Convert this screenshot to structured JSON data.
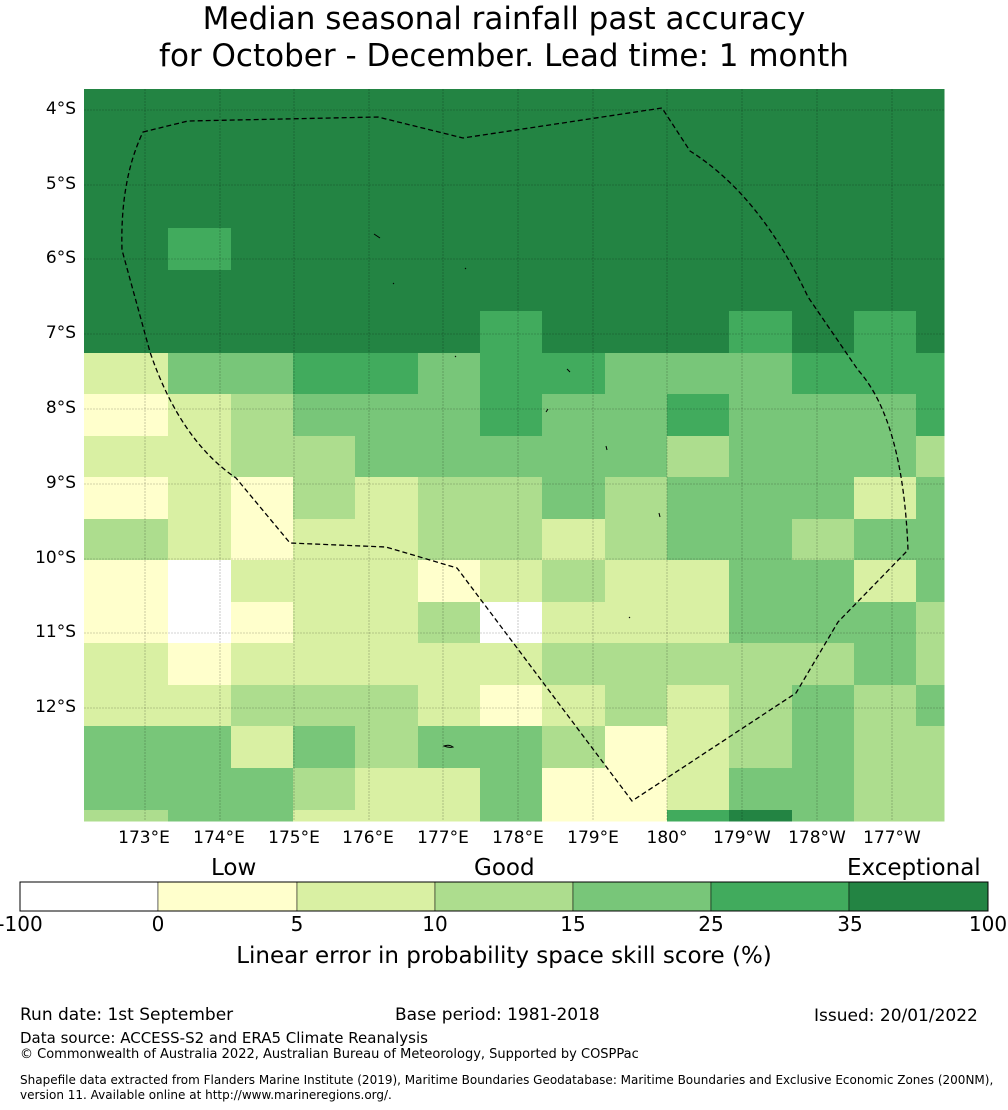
{
  "title_line1": "Median seasonal rainfall past accuracy",
  "title_line2": "for October - December. Lead time: 1 month",
  "map": {
    "lat_labels": [
      "4°S",
      "5°S",
      "6°S",
      "7°S",
      "8°S",
      "9°S",
      "10°S",
      "11°S",
      "12°S"
    ],
    "lon_labels": [
      "173°E",
      "174°E",
      "175°E",
      "176°E",
      "177°E",
      "178°E",
      "179°E",
      "180°",
      "179°W",
      "178°W",
      "177°W"
    ],
    "boundary": "EEZ boundary (dashed)"
  },
  "skill_grid": {
    "columns": 14,
    "rows": 18,
    "row_values": [
      [
        6,
        6,
        6,
        6,
        6,
        6,
        6,
        6,
        6,
        6,
        6,
        6,
        6,
        6
      ],
      [
        6,
        6,
        6,
        6,
        6,
        6,
        6,
        6,
        6,
        6,
        6,
        6,
        6,
        6
      ],
      [
        6,
        6,
        6,
        6,
        6,
        6,
        6,
        6,
        6,
        6,
        6,
        6,
        6,
        6
      ],
      [
        6,
        5,
        6,
        6,
        6,
        6,
        6,
        6,
        6,
        6,
        6,
        6,
        6,
        6
      ],
      [
        6,
        6,
        6,
        6,
        6,
        6,
        6,
        6,
        6,
        6,
        6,
        6,
        6,
        6
      ],
      [
        6,
        6,
        6,
        6,
        6,
        6,
        5,
        6,
        6,
        6,
        5,
        6,
        5,
        6
      ],
      [
        2,
        4,
        4,
        5,
        5,
        4,
        5,
        5,
        4,
        4,
        4,
        5,
        5,
        5
      ],
      [
        1,
        2,
        3,
        4,
        4,
        4,
        5,
        4,
        4,
        5,
        4,
        4,
        4,
        5
      ],
      [
        2,
        2,
        3,
        3,
        4,
        4,
        4,
        4,
        4,
        3,
        4,
        4,
        4,
        3
      ],
      [
        1,
        2,
        1,
        3,
        2,
        3,
        3,
        4,
        3,
        4,
        4,
        4,
        2,
        4
      ],
      [
        3,
        2,
        1,
        2,
        2,
        3,
        3,
        2,
        3,
        4,
        4,
        3,
        4,
        4
      ],
      [
        1,
        0,
        2,
        2,
        2,
        1,
        2,
        3,
        2,
        2,
        4,
        4,
        2,
        4
      ],
      [
        1,
        0,
        1,
        2,
        2,
        3,
        0,
        2,
        2,
        2,
        4,
        4,
        4,
        3
      ],
      [
        2,
        1,
        2,
        2,
        2,
        2,
        2,
        3,
        3,
        3,
        3,
        3,
        4,
        3
      ],
      [
        2,
        2,
        3,
        3,
        3,
        2,
        1,
        2,
        3,
        2,
        3,
        4,
        3,
        4
      ],
      [
        4,
        4,
        2,
        4,
        3,
        4,
        4,
        3,
        1,
        2,
        3,
        4,
        3,
        3
      ],
      [
        4,
        4,
        4,
        3,
        2,
        2,
        4,
        1,
        1,
        2,
        4,
        4,
        3,
        3
      ],
      [
        3,
        4,
        4,
        2,
        2,
        2,
        4,
        1,
        1,
        5,
        6,
        4,
        3,
        3
      ]
    ]
  },
  "legend": {
    "categories": [
      "Low",
      "Good",
      "Exceptional"
    ],
    "ticks": [
      "-100",
      "0",
      "5",
      "10",
      "15",
      "25",
      "35",
      "100"
    ],
    "colors": [
      "#ffffff",
      "#ffffcc",
      "#d9f0a3",
      "#addd8e",
      "#78c679",
      "#41ab5d",
      "#238443"
    ],
    "title": "Linear error in probability space skill score (%)"
  },
  "footer": {
    "run_date": "Run date: 1st September",
    "base_period": "Base period: 1981-2018",
    "issued": "Issued: 20/01/2022",
    "data_source": "Data source: ACCESS-S2 and ERA5 Climate Reanalysis",
    "copyright": "© Commonwealth of Australia 2022, Australian Bureau of Meteorology, Supported by COSPPac",
    "shapefile": "Shapefile data extracted from Flanders Marine Institute (2019), Maritime Boundaries Geodatabase: Maritime Boundaries and Exclusive Economic Zones (200NM), version 11. Available online at http://www.marineregions.org/."
  }
}
